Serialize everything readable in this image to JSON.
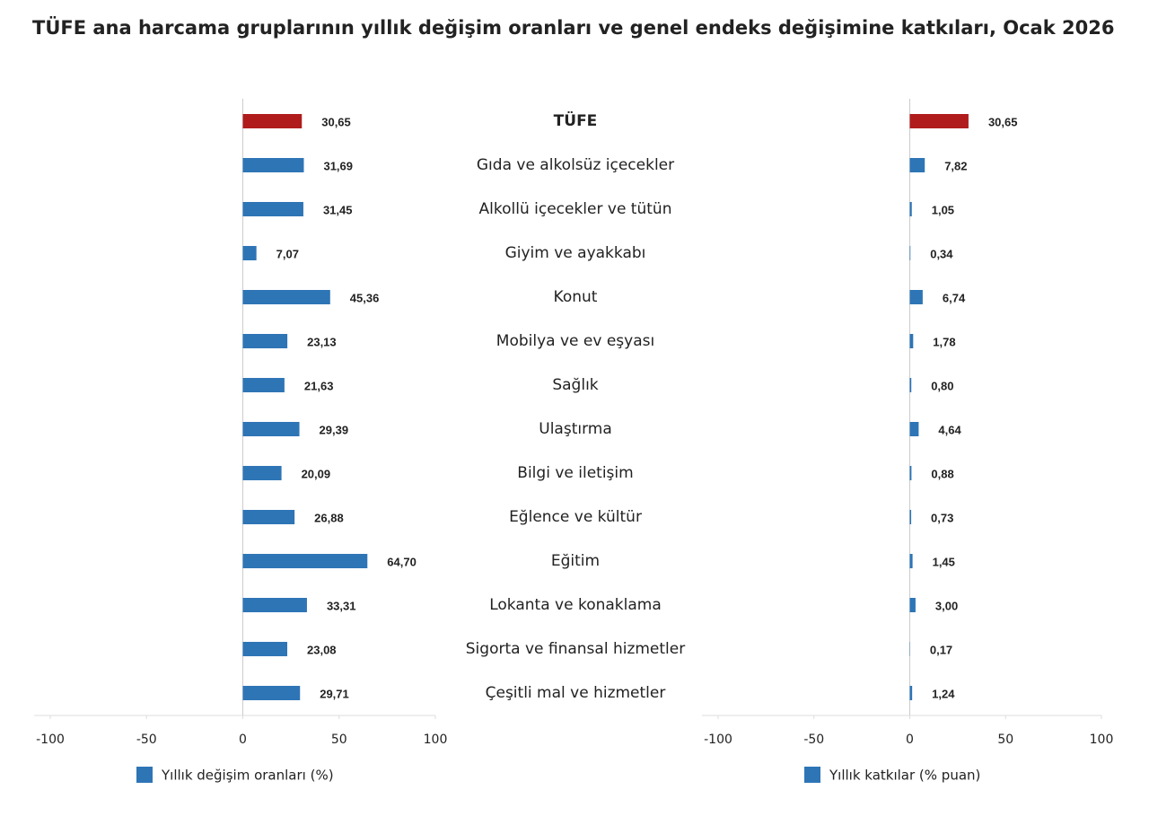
{
  "chart_data": [
    {
      "type": "bar",
      "orientation": "horizontal",
      "title": "TÜFE ana harcama gruplarının yıllık değişim oranları ve genel endeks değişimine katkıları, Ocak 2026",
      "categories": [
        "TÜFE",
        "Gıda ve alkolsüz içecekler",
        "Alkollü içecekler ve tütün",
        "Giyim ve ayakkabı",
        "Konut",
        "Mobilya ve ev eşyası",
        "Sağlık",
        "Ulaştırma",
        "Bilgi ve iletişim",
        "Eğlence ve kültür",
        "Eğitim",
        "Lokanta ve konaklama",
        "Sigorta ve finansal hizmetler",
        "Çeşitli mal ve hizmetler"
      ],
      "series": [
        {
          "name": "Yıllık değişim oranları (%)",
          "color": "#2e75b6",
          "colors": [
            "#b01c1c",
            "#2e75b6",
            "#2e75b6",
            "#2e75b6",
            "#2e75b6",
            "#2e75b6",
            "#2e75b6",
            "#2e75b6",
            "#2e75b6",
            "#2e75b6",
            "#2e75b6",
            "#2e75b6",
            "#2e75b6",
            "#2e75b6"
          ],
          "values": [
            30.65,
            31.69,
            31.45,
            7.07,
            45.36,
            23.13,
            21.63,
            29.39,
            20.09,
            26.88,
            64.7,
            33.31,
            23.08,
            29.71
          ],
          "value_labels": [
            "30,65",
            "31,69",
            "31,45",
            "7,07",
            "45,36",
            "23,13",
            "21,63",
            "29,39",
            "20,09",
            "26,88",
            "64,70",
            "33,31",
            "23,08",
            "29,71"
          ]
        }
      ],
      "xlim": [
        -100,
        100
      ],
      "xticks": [
        -100,
        -50,
        0,
        50,
        100
      ]
    },
    {
      "type": "bar",
      "orientation": "horizontal",
      "series": [
        {
          "name": "Yıllık katkılar (% puan)",
          "color": "#2e75b6",
          "colors": [
            "#b01c1c",
            "#2e75b6",
            "#2e75b6",
            "#2e75b6",
            "#2e75b6",
            "#2e75b6",
            "#2e75b6",
            "#2e75b6",
            "#2e75b6",
            "#2e75b6",
            "#2e75b6",
            "#2e75b6",
            "#2e75b6",
            "#2e75b6"
          ],
          "values": [
            30.65,
            7.82,
            1.05,
            0.34,
            6.74,
            1.78,
            0.8,
            4.64,
            0.88,
            0.73,
            1.45,
            3.0,
            0.17,
            1.24
          ],
          "value_labels": [
            "30,65",
            "7,82",
            "1,05",
            "0,34",
            "6,74",
            "1,78",
            "0,80",
            "4,64",
            "0,88",
            "0,73",
            "1,45",
            "3,00",
            "0,17",
            "1,24"
          ]
        }
      ],
      "xlim": [
        -100,
        100
      ],
      "xticks": [
        -100,
        -50,
        0,
        50,
        100
      ]
    }
  ]
}
